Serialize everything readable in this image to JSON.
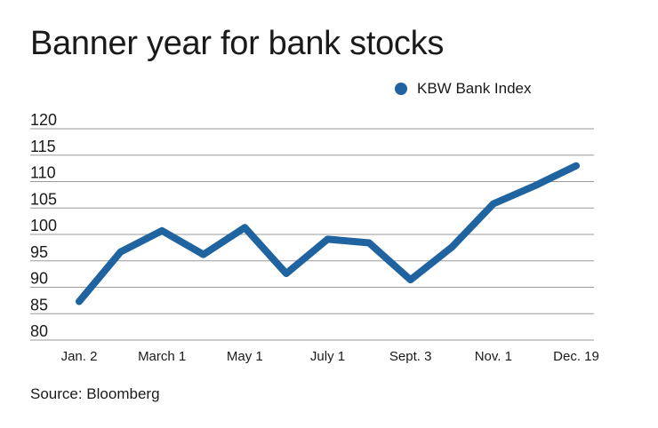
{
  "chart_data": {
    "type": "line",
    "title": "Banner year for bank stocks",
    "source": "Source: Bloomberg",
    "legend_position": "top-right",
    "grid": true,
    "ylim": [
      80,
      120
    ],
    "yticks": [
      80,
      85,
      90,
      95,
      100,
      105,
      110,
      115,
      120
    ],
    "x_tick_labels": [
      "Jan. 2",
      "March 1",
      "May 1",
      "July 1",
      "Sept. 3",
      "Nov. 1",
      "Dec. 19"
    ],
    "series": [
      {
        "name": "KBW Bank Index",
        "color": "#1f64a0",
        "values": [
          87.3,
          96.7,
          100.7,
          96.2,
          101.3,
          92.6,
          99.1,
          98.4,
          91.4,
          97.6,
          105.8,
          109.2,
          113.0
        ]
      }
    ]
  }
}
